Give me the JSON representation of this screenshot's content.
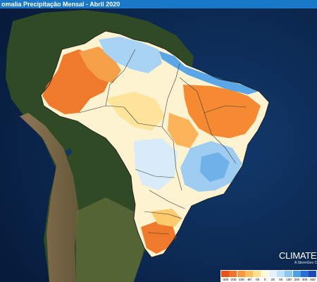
{
  "header": {
    "title": "omalia Precipitação Mensal - Abril 2020"
  },
  "brand": {
    "name": "CLIMATEMP",
    "tagline": "A StormGeo Com"
  },
  "legend": {
    "classes": [
      {
        "label": "-300",
        "color": "#e8521c"
      },
      {
        "label": "-200",
        "color": "#f0752a"
      },
      {
        "label": "-100",
        "color": "#f79a3d"
      },
      {
        "label": "-60",
        "color": "#fbbf5c"
      },
      {
        "label": "-25",
        "color": "#fde08c"
      },
      {
        "label": "0",
        "color": "#fff8d6"
      },
      {
        "label": "25",
        "color": "#e4f2fb"
      },
      {
        "label": "60",
        "color": "#bfe0f6"
      },
      {
        "label": "100",
        "color": "#8cc6ef"
      },
      {
        "label": "200",
        "color": "#4f9fe3"
      },
      {
        "label": "300",
        "color": "#2a6fd6"
      },
      {
        "label": "400",
        "color": "#1d49b8"
      }
    ]
  },
  "colors": {
    "ocean": "#0b2a55",
    "forest": "#2c4a22",
    "andes": "#8a6a4a",
    "title_bar": "#1a78c8",
    "state_border": "#3a3a3a"
  }
}
